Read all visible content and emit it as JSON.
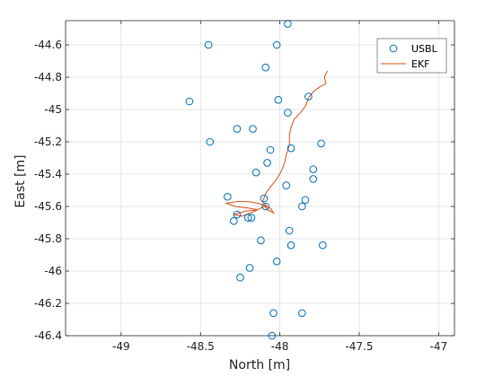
{
  "colors": {
    "usbl": "#0072BD",
    "ekf": "#D95319",
    "grid": "#DFDFDF",
    "axis": "#262626",
    "background": "#FFFFFF"
  },
  "chart_data": {
    "type": "scatter",
    "title": "",
    "xlabel": "North [m]",
    "ylabel": "East [m]",
    "xlim": [
      -49.35,
      -46.9
    ],
    "ylim": [
      -46.4,
      -44.45
    ],
    "xticks": [
      -49,
      -48.5,
      -48,
      -47.5,
      -47
    ],
    "xtick_labels": [
      "-49",
      "-48.5",
      "-48",
      "-47.5",
      "-47"
    ],
    "yticks": [
      -44.6,
      -44.8,
      -45,
      -45.2,
      -45.4,
      -45.6,
      -45.8,
      -46,
      -46.2,
      -46.4
    ],
    "ytick_labels": [
      "-44.6",
      "-44.8",
      "-45",
      "-45.2",
      "-45.4",
      "-45.6",
      "-45.8",
      "-46",
      "-46.2",
      "-46.4"
    ],
    "grid": true,
    "legend_position": "top-right",
    "series": [
      {
        "name": "USBL",
        "kind": "markers",
        "marker": "circle",
        "color": "#0072BD",
        "points": [
          [
            -47.95,
            -44.47
          ],
          [
            -48.02,
            -44.6
          ],
          [
            -48.45,
            -44.6
          ],
          [
            -48.09,
            -44.74
          ],
          [
            -48.57,
            -44.95
          ],
          [
            -48.01,
            -44.94
          ],
          [
            -47.82,
            -44.92
          ],
          [
            -47.95,
            -45.02
          ],
          [
            -48.27,
            -45.12
          ],
          [
            -48.17,
            -45.12
          ],
          [
            -48.44,
            -45.2
          ],
          [
            -47.74,
            -45.21
          ],
          [
            -48.06,
            -45.25
          ],
          [
            -47.93,
            -45.24
          ],
          [
            -48.08,
            -45.33
          ],
          [
            -47.79,
            -45.37
          ],
          [
            -48.15,
            -45.39
          ],
          [
            -47.79,
            -45.43
          ],
          [
            -47.96,
            -45.47
          ],
          [
            -48.33,
            -45.54
          ],
          [
            -48.1,
            -45.55
          ],
          [
            -47.84,
            -45.56
          ],
          [
            -47.86,
            -45.6
          ],
          [
            -48.09,
            -45.6
          ],
          [
            -48.27,
            -45.65
          ],
          [
            -48.2,
            -45.67
          ],
          [
            -48.18,
            -45.67
          ],
          [
            -48.29,
            -45.69
          ],
          [
            -47.94,
            -45.75
          ],
          [
            -48.12,
            -45.81
          ],
          [
            -47.93,
            -45.84
          ],
          [
            -47.73,
            -45.84
          ],
          [
            -48.02,
            -45.94
          ],
          [
            -48.19,
            -45.98
          ],
          [
            -48.25,
            -46.04
          ],
          [
            -48.04,
            -46.26
          ],
          [
            -47.86,
            -46.26
          ],
          [
            -48.05,
            -46.4
          ]
        ]
      },
      {
        "name": "EKF",
        "kind": "line",
        "color": "#D95319",
        "points": [
          [
            -47.7,
            -44.76
          ],
          [
            -47.72,
            -44.8
          ],
          [
            -47.71,
            -44.84
          ],
          [
            -47.75,
            -44.86
          ],
          [
            -47.79,
            -44.89
          ],
          [
            -47.82,
            -44.93
          ],
          [
            -47.84,
            -44.98
          ],
          [
            -47.87,
            -45.02
          ],
          [
            -47.91,
            -45.06
          ],
          [
            -47.93,
            -45.11
          ],
          [
            -47.94,
            -45.16
          ],
          [
            -47.94,
            -45.22
          ],
          [
            -47.96,
            -45.28
          ],
          [
            -47.97,
            -45.33
          ],
          [
            -47.99,
            -45.38
          ],
          [
            -48.02,
            -45.43
          ],
          [
            -48.06,
            -45.48
          ],
          [
            -48.09,
            -45.52
          ],
          [
            -48.1,
            -45.55
          ],
          [
            -48.11,
            -45.57
          ],
          [
            -48.08,
            -45.6
          ],
          [
            -48.14,
            -45.58
          ],
          [
            -48.2,
            -45.57
          ],
          [
            -48.27,
            -45.57
          ],
          [
            -48.34,
            -45.58
          ],
          [
            -48.28,
            -45.6
          ],
          [
            -48.2,
            -45.61
          ],
          [
            -48.14,
            -45.62
          ],
          [
            -48.22,
            -45.63
          ],
          [
            -48.29,
            -45.65
          ],
          [
            -48.24,
            -45.66
          ],
          [
            -48.16,
            -45.63
          ],
          [
            -48.1,
            -45.6
          ],
          [
            -48.06,
            -45.61
          ],
          [
            -48.04,
            -45.64
          ],
          [
            -48.08,
            -45.62
          ],
          [
            -48.1,
            -45.59
          ]
        ]
      }
    ]
  }
}
